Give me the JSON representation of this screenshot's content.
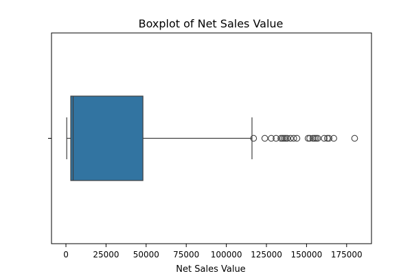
{
  "chart_data": {
    "type": "boxplot",
    "title": "Boxplot of Net Sales Value",
    "xlabel": "Net Sales Value",
    "ylabel": "",
    "xlim": [
      -9000,
      190500
    ],
    "x_ticks": [
      0,
      25000,
      50000,
      75000,
      100000,
      125000,
      150000,
      175000
    ],
    "x_tick_labels": [
      "0",
      "25000",
      "50000",
      "75000",
      "100000",
      "125000",
      "150000",
      "175000"
    ],
    "box_color": "#3274a1",
    "line_color": "#3f3f3f",
    "grid": false,
    "series": [
      {
        "whisker_low": 500,
        "q1": 3000,
        "median": 4500,
        "q3": 48000,
        "whisker_high": 116000,
        "outliers": [
          117000,
          124000,
          128000,
          131000,
          134000,
          135000,
          136000,
          137000,
          138000,
          140000,
          142000,
          144000,
          151000,
          152000,
          154000,
          155000,
          156000,
          157000,
          161000,
          163000,
          164000,
          167000,
          180000
        ]
      }
    ]
  }
}
